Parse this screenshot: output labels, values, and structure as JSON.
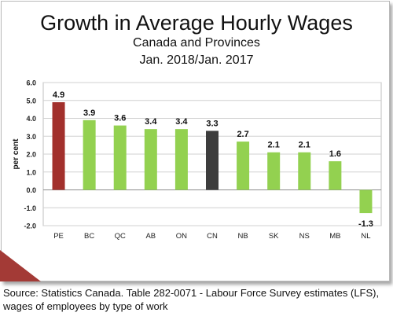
{
  "chart_data": {
    "type": "bar",
    "title": "Growth in Average Hourly Wages",
    "subtitle": "Canada and Provinces",
    "period": "Jan. 2018/Jan. 2017",
    "ylabel": "per cent",
    "xlabel": "",
    "ylim": [
      -2.0,
      6.0
    ],
    "yticks": [
      "-2.0",
      "-1.0",
      "0.0",
      "1.0",
      "2.0",
      "3.0",
      "4.0",
      "5.0",
      "6.0"
    ],
    "categories": [
      "PE",
      "BC",
      "QC",
      "AB",
      "ON",
      "CN",
      "NB",
      "SK",
      "NS",
      "MB",
      "NL"
    ],
    "values": [
      4.9,
      3.9,
      3.6,
      3.4,
      3.4,
      3.3,
      2.7,
      2.1,
      2.1,
      1.6,
      -1.3
    ],
    "value_labels": [
      "4.9",
      "3.9",
      "3.6",
      "3.4",
      "3.4",
      "3.3",
      "2.7",
      "2.1",
      "2.1",
      "1.6",
      "-1.3"
    ],
    "bar_colors": [
      "#a2302c",
      "#93d150",
      "#93d150",
      "#93d150",
      "#93d150",
      "#3d3d3d",
      "#93d150",
      "#93d150",
      "#93d150",
      "#93d150",
      "#93d150"
    ],
    "grid": true,
    "legend": "none"
  },
  "source": {
    "line1": "Source: Statistics Canada. Table 282-0071 - Labour Force Survey estimates (LFS),",
    "line2": "wages of employees by type of work"
  }
}
